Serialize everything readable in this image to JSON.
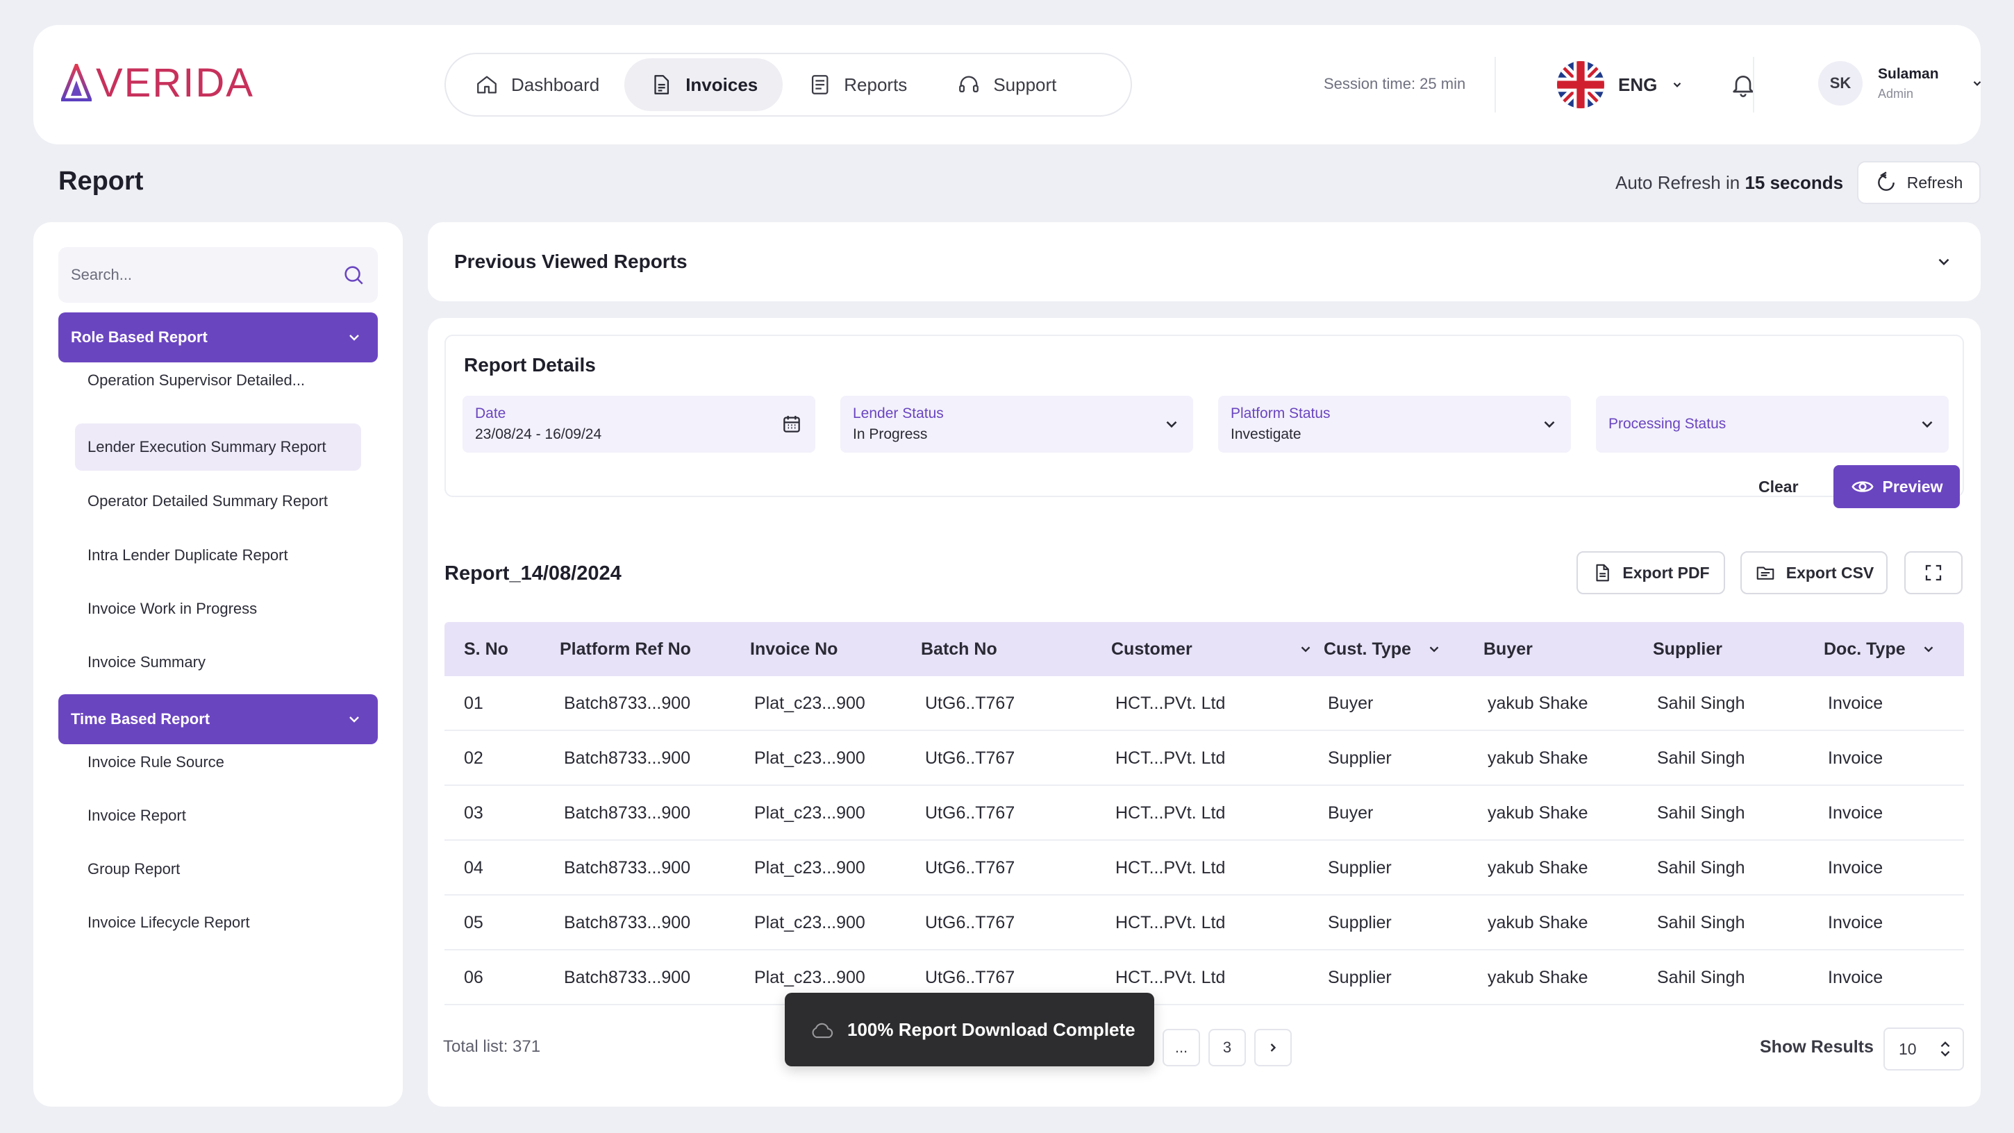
{
  "brand": {
    "name": "VERIDA"
  },
  "nav": {
    "items": [
      {
        "label": "Dashboard",
        "icon": "home-icon",
        "active": false
      },
      {
        "label": "Invoices",
        "icon": "document-icon",
        "active": true
      },
      {
        "label": "Reports",
        "icon": "report-icon",
        "active": false
      },
      {
        "label": "Support",
        "icon": "headset-icon",
        "active": false
      }
    ]
  },
  "header": {
    "session_time": "Session time: 25 min",
    "language": "ENG",
    "user": {
      "initials": "SK",
      "name": "Sulaman",
      "role": "Admin"
    }
  },
  "page": {
    "title": "Report",
    "auto_refresh_prefix": "Auto Refresh in",
    "auto_refresh_value": "15 seconds",
    "refresh_label": "Refresh"
  },
  "sidebar": {
    "search_placeholder": "Search...",
    "groups": [
      {
        "title": "Role Based Report",
        "items": [
          "Operation Supervisor Detailed...",
          "Lender  Execution Summary Report",
          "Operator Detailed Summary Report",
          "Intra Lender Duplicate Report",
          "Invoice Work in Progress",
          "Invoice Summary"
        ],
        "active_index": 1
      },
      {
        "title": "Time Based Report",
        "items": [
          "Invoice Rule Source",
          "Invoice Report",
          "Group Report",
          "Invoice Lifecycle Report"
        ]
      }
    ]
  },
  "previous": {
    "title": "Previous Viewed Reports"
  },
  "details": {
    "title": "Report Details",
    "filters": [
      {
        "label": "Date",
        "value": "23/08/24 - 16/09/24",
        "icon": "calendar-icon"
      },
      {
        "label": "Lender Status",
        "value": "In Progress",
        "icon": "chevron-down-icon"
      },
      {
        "label": "Platform Status",
        "value": "Investigate",
        "icon": "chevron-down-icon"
      },
      {
        "label": "Processing Status",
        "value": "",
        "icon": "chevron-down-icon"
      }
    ],
    "clear_label": "Clear",
    "preview_label": "Preview"
  },
  "report": {
    "name": "Report_14/08/2024",
    "export_pdf": "Export PDF",
    "export_csv": "Export CSV"
  },
  "table": {
    "columns": [
      "S. No",
      "Platform Ref No",
      "Invoice No",
      "Batch No",
      "Customer",
      "Cust. Type",
      "Buyer",
      "Supplier",
      "Doc. Type"
    ],
    "rows": [
      [
        "01",
        "Batch8733...900",
        "Plat_c23...900",
        "UtG6..T767",
        "HCT...PVt. Ltd",
        "Buyer",
        "yakub Shake",
        "Sahil Singh",
        "Invoice"
      ],
      [
        "02",
        "Batch8733...900",
        "Plat_c23...900",
        "UtG6..T767",
        "HCT...PVt. Ltd",
        "Supplier",
        "yakub Shake",
        "Sahil Singh",
        "Invoice"
      ],
      [
        "03",
        "Batch8733...900",
        "Plat_c23...900",
        "UtG6..T767",
        "HCT...PVt. Ltd",
        "Buyer",
        "yakub Shake",
        "Sahil Singh",
        "Invoice"
      ],
      [
        "04",
        "Batch8733...900",
        "Plat_c23...900",
        "UtG6..T767",
        "HCT...PVt. Ltd",
        "Supplier",
        "yakub Shake",
        "Sahil Singh",
        "Invoice"
      ],
      [
        "05",
        "Batch8733...900",
        "Plat_c23...900",
        "UtG6..T767",
        "HCT...PVt. Ltd",
        "Supplier",
        "yakub Shake",
        "Sahil Singh",
        "Invoice"
      ],
      [
        "06",
        "Batch8733...900",
        "Plat_c23...900",
        "UtG6..T767",
        "HCT...PVt. Ltd",
        "Supplier",
        "yakub Shake",
        "Sahil Singh",
        "Invoice"
      ]
    ]
  },
  "footer": {
    "total": "Total list: 371",
    "pages": [
      "...",
      "3"
    ],
    "show_results_label": "Show Results",
    "results_value": "10"
  },
  "toast": {
    "message": "100% Report Download Complete"
  },
  "colors": {
    "accent": "#6a45c0",
    "accent_light": "#e8e2f8",
    "brand_red": "#c7315b"
  }
}
